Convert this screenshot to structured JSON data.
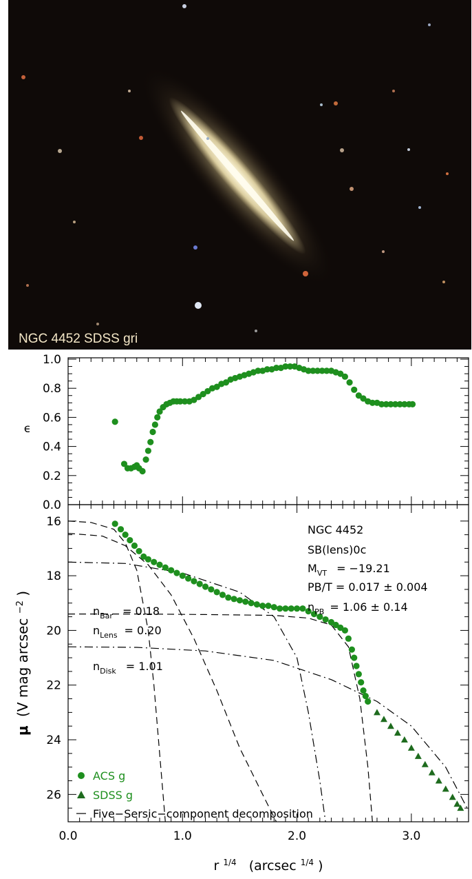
{
  "image_panel": {
    "caption": "NGC 4452  SDSS gri",
    "background": "#0f0a08",
    "galaxy_color": "#e8dcae",
    "caption_color": "#f3e6c6"
  },
  "chart_data": [
    {
      "type": "scatter",
      "panel": "ellipticity",
      "ylabel": "ϵ",
      "xlim": [
        0.0,
        3.5
      ],
      "ylim": [
        0.0,
        1.0
      ],
      "yticks": [
        "0.0",
        "0.2",
        "0.4",
        "0.6",
        "0.8",
        "1.0"
      ],
      "series": [
        {
          "name": "ACS g",
          "color": "#1e8f1e",
          "marker": "circle",
          "x": [
            0.41,
            0.49,
            0.52,
            0.55,
            0.58,
            0.6,
            0.62,
            0.65,
            0.68,
            0.7,
            0.72,
            0.74,
            0.76,
            0.78,
            0.8,
            0.83,
            0.86,
            0.89,
            0.92,
            0.95,
            0.98,
            1.02,
            1.06,
            1.1,
            1.14,
            1.18,
            1.22,
            1.26,
            1.3,
            1.34,
            1.38,
            1.42,
            1.46,
            1.5,
            1.54,
            1.58,
            1.62,
            1.66,
            1.7,
            1.74,
            1.78,
            1.82,
            1.86,
            1.9,
            1.94,
            1.98,
            2.02,
            2.06,
            2.1,
            2.14,
            2.18,
            2.22,
            2.26,
            2.3,
            2.34,
            2.38,
            2.42,
            2.46,
            2.5,
            2.54,
            2.58,
            2.62,
            2.66,
            2.7,
            2.74,
            2.78,
            2.82,
            2.86,
            2.9,
            2.94,
            2.98,
            3.01
          ],
          "y": [
            0.57,
            0.28,
            0.25,
            0.25,
            0.26,
            0.27,
            0.25,
            0.23,
            0.31,
            0.37,
            0.43,
            0.5,
            0.55,
            0.6,
            0.64,
            0.67,
            0.69,
            0.7,
            0.71,
            0.71,
            0.71,
            0.71,
            0.71,
            0.72,
            0.74,
            0.76,
            0.78,
            0.8,
            0.81,
            0.83,
            0.84,
            0.86,
            0.87,
            0.88,
            0.89,
            0.9,
            0.91,
            0.92,
            0.92,
            0.93,
            0.93,
            0.94,
            0.94,
            0.95,
            0.95,
            0.95,
            0.94,
            0.93,
            0.92,
            0.92,
            0.92,
            0.92,
            0.92,
            0.92,
            0.91,
            0.9,
            0.88,
            0.84,
            0.79,
            0.75,
            0.73,
            0.71,
            0.7,
            0.7,
            0.69,
            0.69,
            0.69,
            0.69,
            0.69,
            0.69,
            0.69,
            0.69
          ]
        }
      ]
    },
    {
      "type": "line",
      "panel": "surface-brightness",
      "xlabel": "r^1/4  (arcsec^1/4)",
      "ylabel": "μ (V mag arcsec^−2)",
      "xlim": [
        0.0,
        3.5
      ],
      "ylim": [
        27.0,
        15.4
      ],
      "xticks": [
        "0.0",
        "1.0",
        "2.0",
        "3.0"
      ],
      "yticks": [
        "16",
        "18",
        "20",
        "22",
        "24",
        "26"
      ],
      "series": [
        {
          "name": "ACS g",
          "color": "#1e8f1e",
          "marker": "circle",
          "x": [
            0.41,
            0.46,
            0.5,
            0.54,
            0.58,
            0.62,
            0.66,
            0.7,
            0.75,
            0.8,
            0.85,
            0.9,
            0.95,
            1.0,
            1.05,
            1.1,
            1.15,
            1.2,
            1.25,
            1.3,
            1.35,
            1.4,
            1.45,
            1.5,
            1.55,
            1.6,
            1.65,
            1.7,
            1.75,
            1.8,
            1.85,
            1.9,
            1.95,
            2.0,
            2.05,
            2.1,
            2.15,
            2.2,
            2.25,
            2.3,
            2.34,
            2.38,
            2.42,
            2.45,
            2.48,
            2.5,
            2.52,
            2.54,
            2.56,
            2.58,
            2.6,
            2.62
          ],
          "y": [
            16.1,
            16.3,
            16.5,
            16.7,
            16.9,
            17.1,
            17.3,
            17.4,
            17.5,
            17.6,
            17.7,
            17.8,
            17.9,
            18.0,
            18.1,
            18.2,
            18.3,
            18.4,
            18.5,
            18.6,
            18.7,
            18.8,
            18.85,
            18.9,
            18.95,
            19.0,
            19.05,
            19.1,
            19.1,
            19.15,
            19.2,
            19.2,
            19.2,
            19.2,
            19.2,
            19.3,
            19.4,
            19.5,
            19.6,
            19.7,
            19.8,
            19.9,
            20.0,
            20.3,
            20.7,
            21.0,
            21.3,
            21.6,
            21.9,
            22.2,
            22.4,
            22.6
          ]
        },
        {
          "name": "SDSS g",
          "color": "#1e6b1e",
          "marker": "triangle",
          "x": [
            2.7,
            2.76,
            2.82,
            2.88,
            2.94,
            3.0,
            3.06,
            3.12,
            3.18,
            3.24,
            3.3,
            3.36,
            3.4,
            3.43
          ],
          "y": [
            23.0,
            23.25,
            23.5,
            23.75,
            24.0,
            24.3,
            24.6,
            24.9,
            25.2,
            25.5,
            25.8,
            26.1,
            26.35,
            26.5
          ]
        },
        {
          "name": "Five−Sersic−component decomposition",
          "color": "#000000",
          "marker": "none",
          "components": [
            {
              "x": [
                0.0,
                0.2,
                0.4,
                0.5,
                0.6,
                0.7,
                0.75,
                0.8,
                0.85
              ],
              "y": [
                16.0,
                16.05,
                16.3,
                16.8,
                17.8,
                20.0,
                22.0,
                24.5,
                27.0
              ]
            },
            {
              "x": [
                0.0,
                0.3,
                0.5,
                0.7,
                0.9,
                1.1,
                1.3,
                1.5,
                1.7,
                1.82
              ],
              "y": [
                16.45,
                16.55,
                16.9,
                17.6,
                18.7,
                20.3,
                22.2,
                24.3,
                26.0,
                27.0
              ]
            },
            {
              "x": [
                0.0,
                0.5,
                1.0,
                1.5,
                1.8,
                2.0,
                2.1,
                2.2,
                2.25
              ],
              "y": [
                17.5,
                17.55,
                17.9,
                18.6,
                19.5,
                21.0,
                23.0,
                25.5,
                27.0
              ]
            },
            {
              "x": [
                0.0,
                0.6,
                1.2,
                1.8,
                2.1,
                2.3,
                2.45,
                2.55,
                2.62,
                2.66
              ],
              "y": [
                19.4,
                19.4,
                19.42,
                19.45,
                19.55,
                19.8,
                20.6,
                22.5,
                25.0,
                27.0
              ]
            },
            {
              "x": [
                0.0,
                0.6,
                1.2,
                1.8,
                2.3,
                2.7,
                3.0,
                3.3,
                3.5
              ],
              "y": [
                20.6,
                20.62,
                20.75,
                21.1,
                21.8,
                22.6,
                23.5,
                25.0,
                26.6
              ]
            }
          ]
        }
      ],
      "annotations": [
        "NGC 4452",
        "SB(lens)0c",
        "M_VT  =  −19.21",
        "PB/T = 0.017 ± 0.004",
        "n_PB  =  1.06 ± 0.14",
        "n_Bar  =  0.18",
        "n_Lens  =  0.20",
        "n_Disk  =  1.01"
      ]
    }
  ],
  "text": {
    "eps_label": "ϵ",
    "mu_symbol": "μ",
    "mu_unit": "(V mag arcsec",
    "mu_exp": "−2",
    "mu_close": ")",
    "x_r": "r",
    "x_exp1": "1/4",
    "x_unit": "(arcsec",
    "x_exp2": "1/4",
    "x_close": ")",
    "galaxy_name": "NGC 4452",
    "galaxy_type": "SB(lens)0c",
    "m_main": "M",
    "m_sub": "VT",
    "m_val": "=  −19.21",
    "pbt": "PB/T = 0.017 ± 0.004",
    "npb_main": "n",
    "npb_sub": "PB",
    "npb_val": "=  1.06 ± 0.14",
    "nbar_main": "n",
    "nbar_sub": "Bar",
    "nbar_val": "=  0.18",
    "nlens_main": "n",
    "nlens_sub": "Lens",
    "nlens_val": "=  0.20",
    "ndisk_main": "n",
    "ndisk_sub": "Disk",
    "ndisk_val": "=  1.01",
    "legend_acs": "ACS g",
    "legend_sdss": "SDSS g",
    "legend_fit": "Five−Sersic−component decomposition"
  }
}
